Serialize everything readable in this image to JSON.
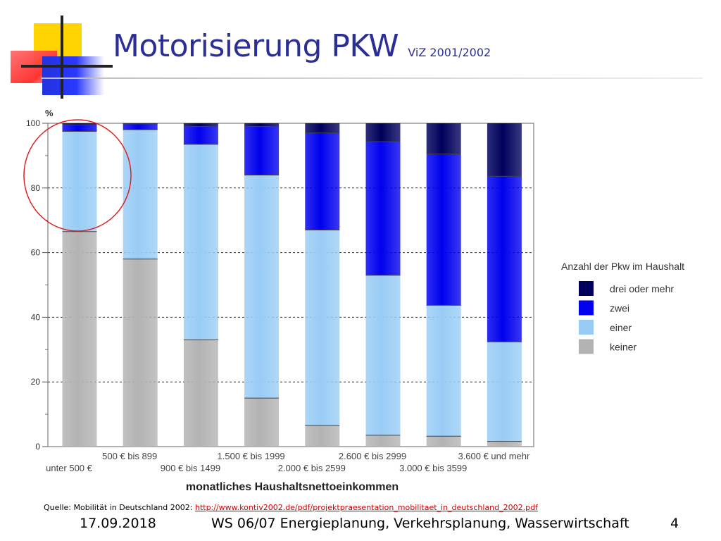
{
  "slide": {
    "title": "Motorisierung PKW",
    "subtitle": "ViZ 2001/2002",
    "source_prefix": "Quelle: Mobilität in Deutschland 2002: ",
    "source_link": "http://www.kontiv2002.de/pdf/projektpraesentation_mobilitaet_in_deutschland_2002.pdf",
    "footer_date": "17.09.2018",
    "footer_course": "WS 06/07 Energieplanung, Verkehrsplanung, Wasserwirtschaft",
    "page_number": "4"
  },
  "colors": {
    "title": "#2b2e96",
    "keiner": "#b3b3b3",
    "einer": "#99ccf5",
    "zwei": "#0000ee",
    "drei_oder_mehr": "#00005c",
    "highlight_circle": "#dd2222"
  },
  "chart_data": {
    "type": "bar",
    "stacked": true,
    "ylabel": "%",
    "xlabel": "monatliches Haushaltsnettoeinkommen",
    "ylim": [
      0,
      100
    ],
    "yticks": [
      0,
      20,
      40,
      60,
      80,
      100
    ],
    "grid": "dashed horizontal",
    "legend_title": "Anzahl der Pkw im Haushalt",
    "legend_position": "right",
    "categories": [
      "unter 500 €",
      "500 € bis 899",
      "900 € bis 1499",
      "1.500 € bis 1999",
      "2.000 € bis 2599",
      "2.600 € bis 2999",
      "3.000 € bis 3599",
      "3.600 € und mehr"
    ],
    "series": [
      {
        "name": "keiner",
        "color_key": "keiner",
        "values": [
          66.5,
          58,
          33,
          15,
          6.5,
          3.5,
          3.2,
          1.6
        ]
      },
      {
        "name": "einer",
        "color_key": "einer",
        "values": [
          31,
          40,
          60.5,
          69,
          60.5,
          49.5,
          40.5,
          30.8
        ]
      },
      {
        "name": "zwei",
        "color_key": "zwei",
        "values": [
          2,
          1.8,
          5.5,
          15,
          30,
          41.3,
          46.8,
          51.2
        ]
      },
      {
        "name": "drei oder mehr",
        "color_key": "drei_oder_mehr",
        "values": [
          0.5,
          0.2,
          1,
          1,
          3,
          5.7,
          9.5,
          16.4
        ]
      }
    ],
    "annotation": "red circle highlighting the 'unter 500 €' bar between about 67 % and 100 %"
  }
}
